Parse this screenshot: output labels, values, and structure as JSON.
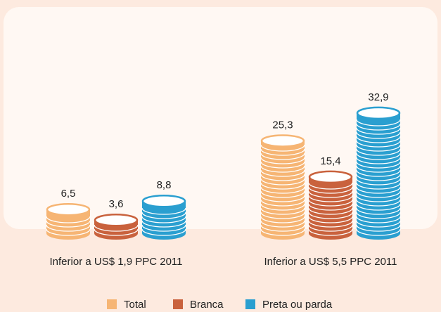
{
  "chart_data": {
    "type": "bar",
    "categories": [
      "Inferior a US$ 1,9 PPC 2011",
      "Inferior a US$ 5,5 PPC 2011"
    ],
    "series": [
      {
        "name": "Total",
        "color": "#f6b574",
        "values": [
          6.5,
          25.3
        ],
        "value_labels": [
          "6,5",
          "25,3"
        ]
      },
      {
        "name": "Branca",
        "color": "#c9623d",
        "values": [
          3.6,
          15.4
        ],
        "value_labels": [
          "3,6",
          "15,4"
        ]
      },
      {
        "name": "Preta ou parda",
        "color": "#2a9fd0",
        "values": [
          8.8,
          32.9
        ],
        "value_labels": [
          "8,8",
          "32,9"
        ]
      }
    ]
  }
}
